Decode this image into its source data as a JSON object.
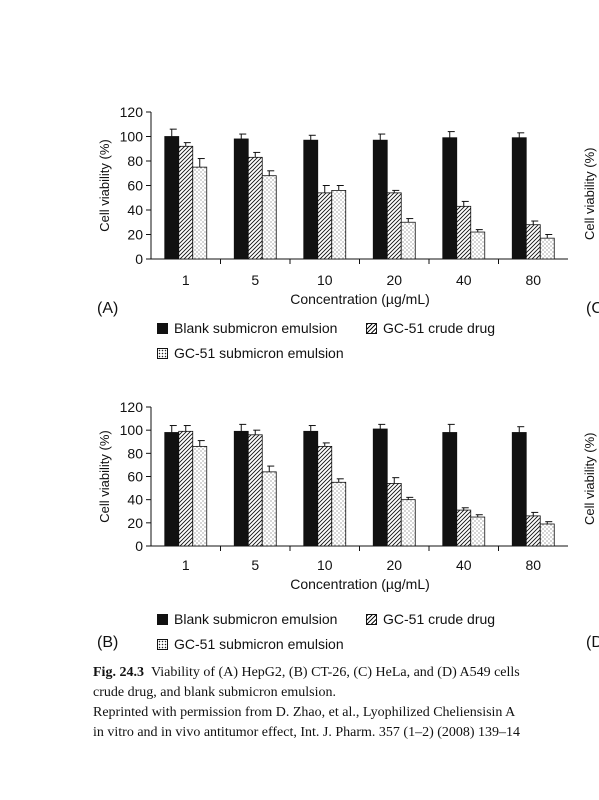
{
  "chart_data": [
    {
      "type": "bar",
      "panel_label": "(A)",
      "xlabel": "Concentration (µg/mL)",
      "ylabel": "Cell viability (%)",
      "ylim": [
        0,
        120
      ],
      "yticks": [
        "0",
        "20",
        "40",
        "60",
        "80",
        "100",
        "120"
      ],
      "categories": [
        "1",
        "5",
        "10",
        "20",
        "40",
        "80"
      ],
      "legend_placement": "bottom",
      "series": [
        {
          "name": "Blank submicron emulsion",
          "pattern": "solid",
          "values": [
            100,
            98,
            97,
            97,
            99,
            99
          ],
          "errors": [
            6,
            4,
            4,
            5,
            5,
            4
          ]
        },
        {
          "name": "GC-51 crude drug",
          "pattern": "hatch",
          "values": [
            92,
            83,
            54,
            54,
            43,
            28
          ],
          "errors": [
            3,
            4,
            6,
            2,
            4,
            3
          ]
        },
        {
          "name": "GC-51 submicron emulsion",
          "pattern": "dots",
          "values": [
            75,
            68,
            56,
            30,
            22,
            17
          ],
          "errors": [
            7,
            4,
            4,
            3,
            2,
            3
          ]
        }
      ]
    },
    {
      "type": "bar",
      "panel_label": "(B)",
      "xlabel": "Concentration (µg/mL)",
      "ylabel": "Cell viability (%)",
      "ylim": [
        0,
        120
      ],
      "yticks": [
        "0",
        "20",
        "40",
        "60",
        "80",
        "100",
        "120"
      ],
      "categories": [
        "1",
        "5",
        "10",
        "20",
        "40",
        "80"
      ],
      "legend_placement": "bottom",
      "series": [
        {
          "name": "Blank submicron emulsion",
          "pattern": "solid",
          "values": [
            98,
            99,
            99,
            101,
            98,
            98
          ],
          "errors": [
            6,
            6,
            5,
            4,
            7,
            5
          ]
        },
        {
          "name": "GC-51 crude drug",
          "pattern": "hatch",
          "values": [
            99,
            96,
            86,
            54,
            31,
            26
          ],
          "errors": [
            5,
            4,
            3,
            5,
            2,
            3
          ]
        },
        {
          "name": "GC-51 submicron emulsion",
          "pattern": "dots",
          "values": [
            86,
            64,
            55,
            40,
            25,
            19
          ],
          "errors": [
            5,
            5,
            3,
            2,
            2,
            2
          ]
        }
      ]
    }
  ],
  "partial_right": {
    "label_c": "(C",
    "label_d": "(D",
    "ylabel_c": "Cell viability (%)",
    "ylabel_d": "Cell viability (%)"
  },
  "caption": {
    "fig_label": "Fig. 24.3",
    "line1": "Viability of (A) HepG2, (B) CT-26, (C) HeLa, and (D) A549 cells",
    "line2": "crude drug, and blank submicron emulsion.",
    "line3": "Reprinted with permission from D. Zhao, et al., Lyophilized Cheliensisin A",
    "line4": "in vitro and in vivo antitumor effect, Int. J. Pharm. 357 (1–2) (2008) 139–14"
  }
}
